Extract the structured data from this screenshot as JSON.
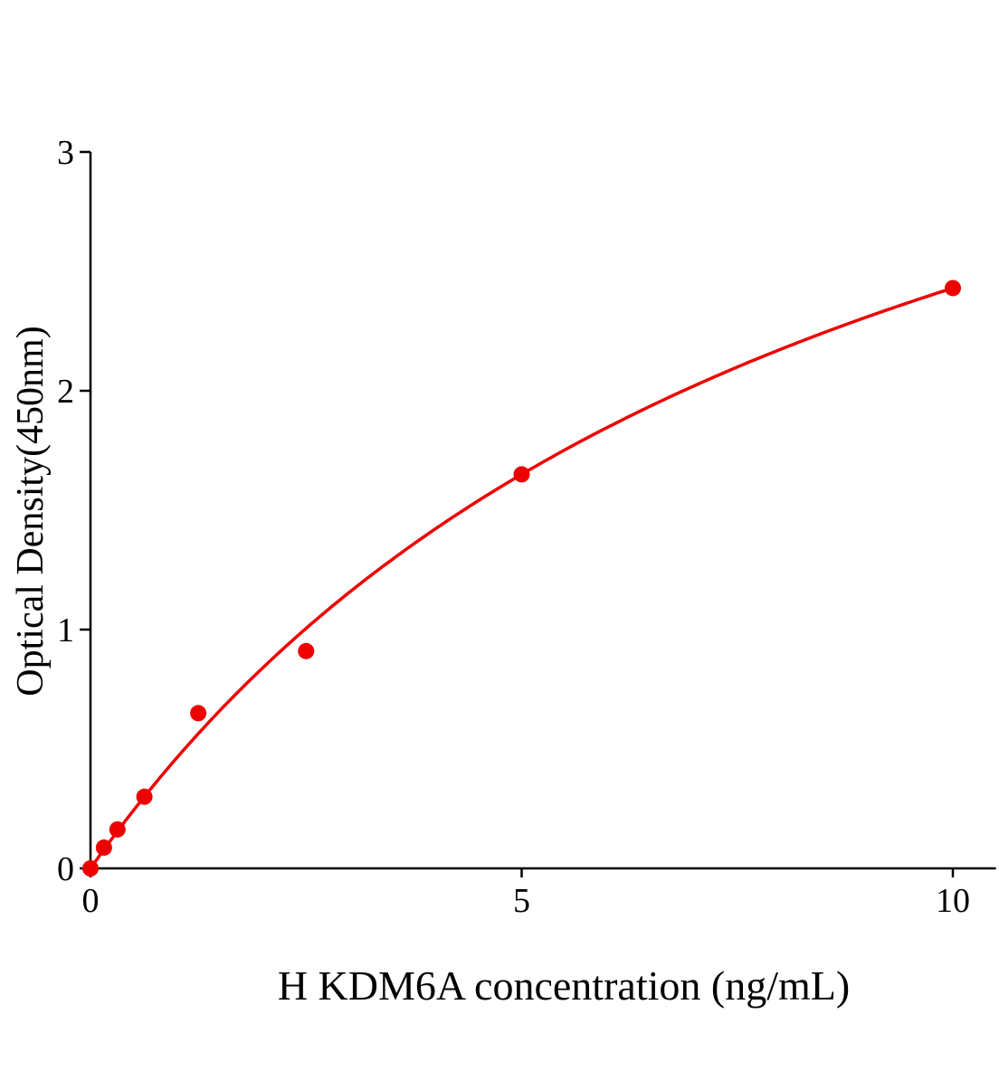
{
  "chart_data": {
    "type": "scatter",
    "title": "",
    "xlabel": "H KDM6A concentration (ng/mL)",
    "ylabel": "Optical Density(450nm)",
    "xlim": [
      0,
      10.5
    ],
    "ylim": [
      0,
      3
    ],
    "xticks": [
      0,
      5,
      10
    ],
    "yticks": [
      0,
      1,
      2,
      3
    ],
    "grid": false,
    "color": "#ee0000",
    "fit_line": true,
    "series": [
      {
        "x": [
          0,
          0.156,
          0.3125,
          0.625,
          1.25,
          2.5,
          5,
          10
        ],
        "y": [
          0.0,
          0.087,
          0.163,
          0.3,
          0.65,
          0.91,
          1.65,
          2.43
        ]
      }
    ]
  }
}
